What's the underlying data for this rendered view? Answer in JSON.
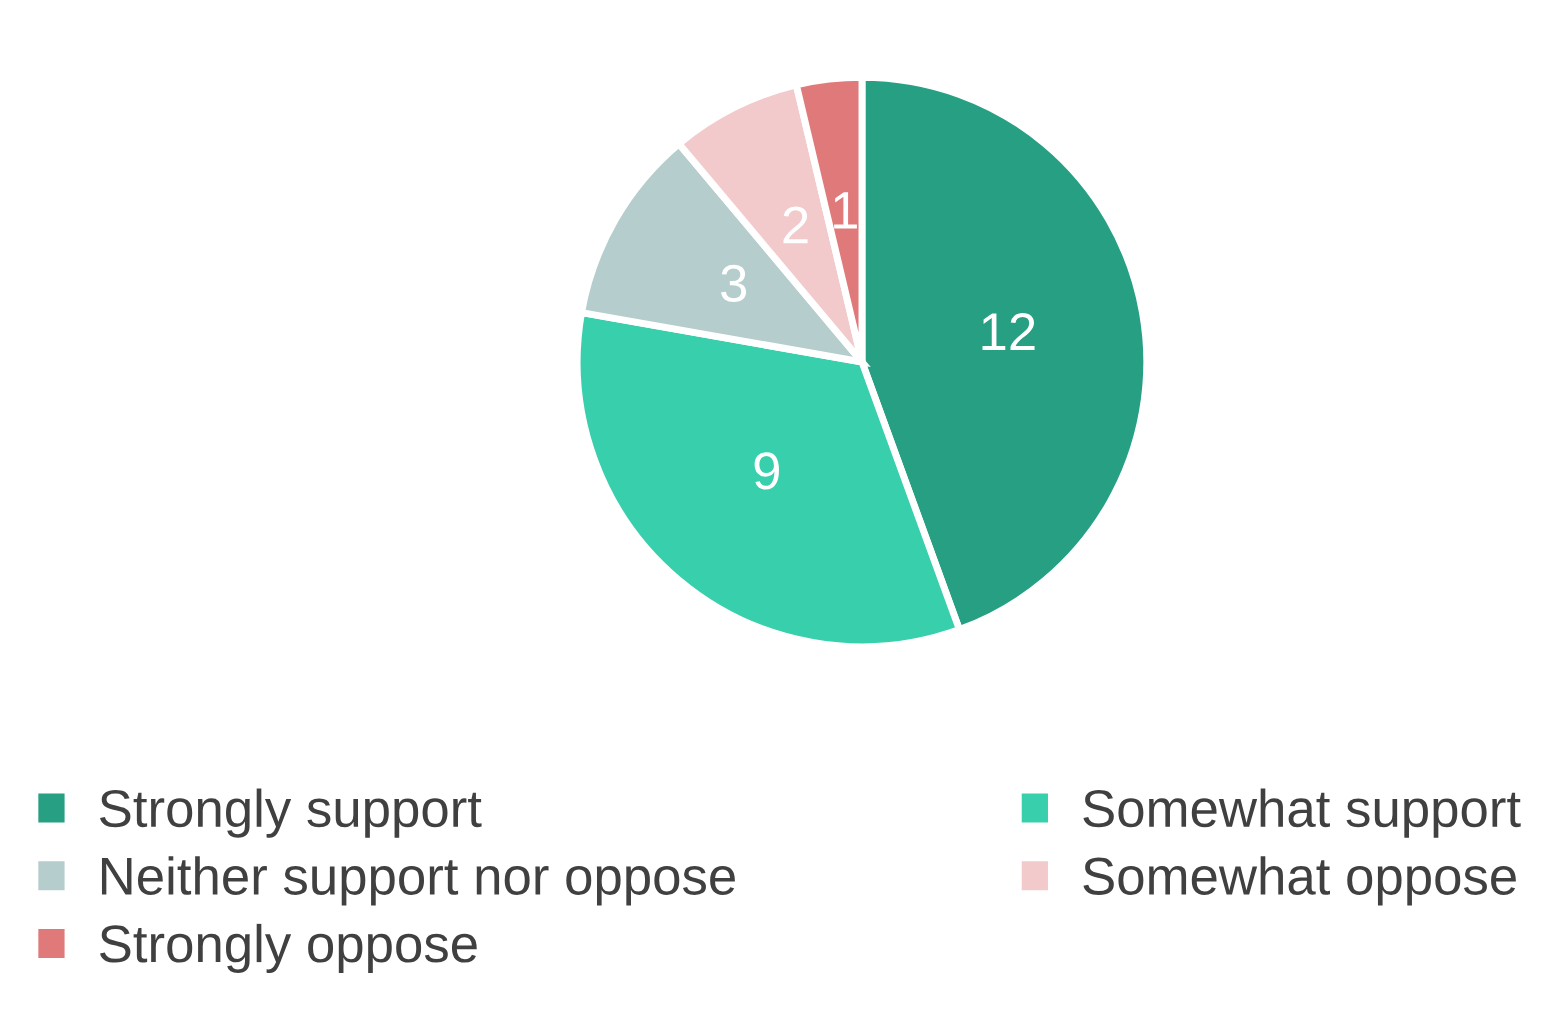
{
  "chart_data": {
    "type": "pie",
    "categories": [
      "Strongly support",
      "Somewhat support",
      "Neither support nor oppose",
      "Somewhat oppose",
      "Strongly oppose"
    ],
    "values": [
      12,
      9,
      3,
      2,
      1
    ],
    "colors": [
      "#279f83",
      "#38cfad",
      "#b5cdcc",
      "#f2cacb",
      "#e07a7a"
    ],
    "data_labels": true,
    "legend": "bottom"
  }
}
